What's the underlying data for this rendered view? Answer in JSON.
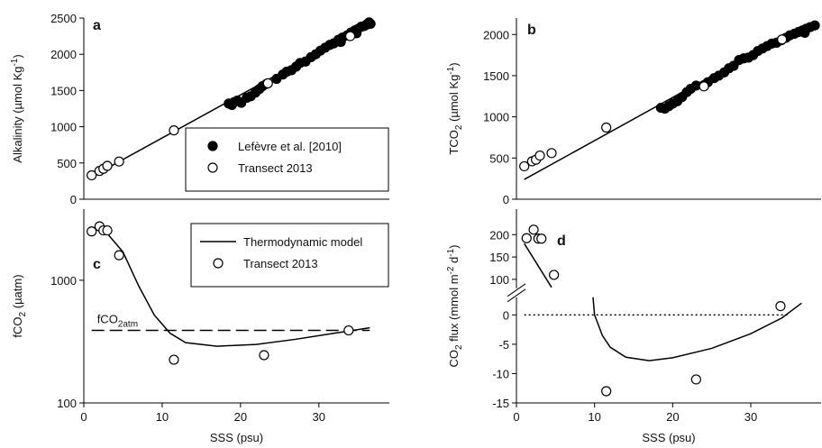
{
  "chart_data": [
    {
      "type": "scatter",
      "panel": "a",
      "ylabel": [
        {
          "text": "Alkalinity (µmol Kg"
        },
        {
          "text": "-1",
          "shift": "super"
        },
        {
          "text": ")"
        }
      ],
      "xlim": [
        0,
        39
      ],
      "ylim": [
        0,
        2500
      ],
      "yticks": [
        0,
        500,
        1000,
        1500,
        2000,
        2500
      ],
      "legend": "lower right",
      "series": [
        {
          "mode": "line",
          "dash": "solid",
          "color": "#000000",
          "x": [
            1,
            36.5
          ],
          "values": [
            310,
            2420
          ]
        },
        {
          "name": "Lefèvre et al. [2010]",
          "mode": "markers",
          "fill": "#000000",
          "color": "#000000",
          "x": [
            18.5,
            18.9,
            19.2,
            19.6,
            20.1,
            20.8,
            21.3,
            21.9,
            22.4,
            22.8,
            23.3,
            24.6,
            25.4,
            25.9,
            26.5,
            27.1,
            27.6,
            28.3,
            29.0,
            29.6,
            30.2,
            30.8,
            31.4,
            31.9,
            32.5,
            33.0,
            33.6,
            34.1,
            34.6,
            35.0,
            35.4,
            35.8,
            36.1,
            36.4,
            36.6,
            34.8,
            32.8
          ],
          "values": [
            1320,
            1300,
            1340,
            1360,
            1330,
            1400,
            1420,
            1470,
            1520,
            1560,
            1590,
            1660,
            1720,
            1760,
            1780,
            1830,
            1880,
            1900,
            1960,
            2000,
            2050,
            2090,
            2130,
            2150,
            2200,
            2230,
            2260,
            2300,
            2330,
            2350,
            2380,
            2390,
            2410,
            2440,
            2420,
            2290,
            2170
          ]
        },
        {
          "name": "Transect 2013",
          "mode": "markers",
          "fill": "#ffffff",
          "color": "#000000",
          "x": [
            1,
            2,
            2.5,
            3,
            4.5,
            11.5,
            23.5,
            34
          ],
          "values": [
            330,
            390,
            420,
            460,
            520,
            950,
            1600,
            2250
          ]
        }
      ]
    },
    {
      "type": "scatter",
      "panel": "b",
      "ylabel": [
        {
          "text": "TCO"
        },
        {
          "text": "2",
          "shift": "sub"
        },
        {
          "text": " (µmol Kg"
        },
        {
          "text": "-1",
          "shift": "super"
        },
        {
          "text": ")"
        }
      ],
      "xlim": [
        0,
        39
      ],
      "ylim": [
        0,
        2200
      ],
      "yticks": [
        0,
        500,
        1000,
        1500,
        2000
      ],
      "series": [
        {
          "mode": "line",
          "dash": "solid",
          "color": "#000000",
          "x": [
            1,
            36.5
          ],
          "values": [
            240,
            2100
          ]
        },
        {
          "mode": "markers",
          "fill": "#000000",
          "color": "#000000",
          "x": [
            18.5,
            19.0,
            19.5,
            20.0,
            20.6,
            21.2,
            21.8,
            22.3,
            23.0,
            24.5,
            25.3,
            25.9,
            26.6,
            27.2,
            27.8,
            28.5,
            29.1,
            29.7,
            30.3,
            30.9,
            31.5,
            32.1,
            32.7,
            33.3,
            33.9,
            34.5,
            35.0,
            35.6,
            36.1,
            36.6,
            37.1,
            37.6,
            38.2,
            36.9
          ],
          "values": [
            1110,
            1100,
            1130,
            1160,
            1190,
            1240,
            1300,
            1340,
            1380,
            1420,
            1470,
            1500,
            1540,
            1590,
            1620,
            1690,
            1710,
            1720,
            1750,
            1800,
            1830,
            1860,
            1890,
            1900,
            1930,
            1960,
            1990,
            2010,
            2030,
            2050,
            2070,
            2090,
            2110,
            2020
          ]
        },
        {
          "mode": "markers",
          "fill": "#ffffff",
          "color": "#000000",
          "x": [
            1,
            2,
            2.5,
            3,
            4.5,
            11.5,
            24,
            34
          ],
          "values": [
            400,
            460,
            480,
            530,
            560,
            870,
            1370,
            1940
          ]
        }
      ]
    },
    {
      "type": "scatter",
      "panel": "c",
      "ylabel": [
        {
          "text": "fCO"
        },
        {
          "text": "2",
          "shift": "sub"
        },
        {
          "text": " (µatm)"
        }
      ],
      "xlabel": "SSS (psu)",
      "xlim": [
        0,
        39
      ],
      "xticks": [
        0,
        10,
        20,
        30
      ],
      "log": true,
      "ylim": [
        100,
        3800
      ],
      "yticks": [
        100,
        1000
      ],
      "legend": "upper right",
      "series": [
        {
          "mode": "line",
          "dash": "dashed",
          "color": "#000000",
          "x": [
            1,
            36.5
          ],
          "values": [
            390,
            390
          ],
          "label": [
            {
              "text": "fCO"
            },
            {
              "text": "2atm",
              "shift": "sub"
            }
          ]
        },
        {
          "name": "Thermodynamic model",
          "mode": "line",
          "dash": "solid",
          "color": "#000000",
          "x": [
            1,
            3,
            5,
            7,
            9,
            11,
            13,
            17,
            22,
            27,
            32,
            36.5
          ],
          "values": [
            2700,
            2400,
            1700,
            900,
            520,
            370,
            310,
            290,
            300,
            330,
            370,
            410
          ]
        },
        {
          "name": "Transect 2013",
          "mode": "markers",
          "fill": "#ffffff",
          "color": "#000000",
          "x": [
            1,
            2,
            2.5,
            3,
            4.5,
            11.5,
            23,
            33.8
          ],
          "values": [
            2500,
            2750,
            2550,
            2550,
            1600,
            225,
            245,
            390
          ]
        }
      ]
    },
    {
      "type": "scatter",
      "panel": "d",
      "ylabel": [
        {
          "text": "CO"
        },
        {
          "text": "2",
          "shift": "sub"
        },
        {
          "text": " flux (mmol m"
        },
        {
          "text": "-2",
          "shift": "super"
        },
        {
          "text": " d"
        },
        {
          "text": "-1",
          "shift": "super"
        },
        {
          "text": ")"
        }
      ],
      "xlabel": "SSS (psu)",
      "xlim": [
        0,
        39
      ],
      "xticks": [
        0,
        10,
        20,
        30
      ],
      "ylim": [
        -15,
        257
      ],
      "ybreak": [
        3,
        80
      ],
      "yticks": [
        -15,
        -10,
        -5,
        0,
        100,
        150,
        200
      ],
      "series": [
        {
          "mode": "line",
          "dash": "dotted",
          "color": "#000000",
          "x": [
            1,
            35
          ],
          "values": [
            0,
            0
          ]
        },
        {
          "mode": "line",
          "dash": "solid",
          "color": "#000000",
          "x": [
            1,
            4.5
          ],
          "values": [
            180,
            82
          ]
        },
        {
          "mode": "line",
          "dash": "solid",
          "color": "#000000",
          "x": [
            9.8,
            10,
            11,
            12,
            14,
            17,
            20,
            25,
            30,
            34,
            36.5
          ],
          "values": [
            3,
            0,
            -3.5,
            -5.5,
            -7.2,
            -7.8,
            -7.3,
            -5.7,
            -3.2,
            -0.5,
            2
          ]
        },
        {
          "mode": "markers",
          "fill": "#ffffff",
          "color": "#000000",
          "x": [
            1.3,
            2.2,
            2.8,
            3.2,
            4.8,
            11.5,
            23,
            33.8
          ],
          "values": [
            192,
            211,
            191,
            191,
            110,
            -13,
            -11,
            1.5
          ]
        }
      ]
    }
  ]
}
